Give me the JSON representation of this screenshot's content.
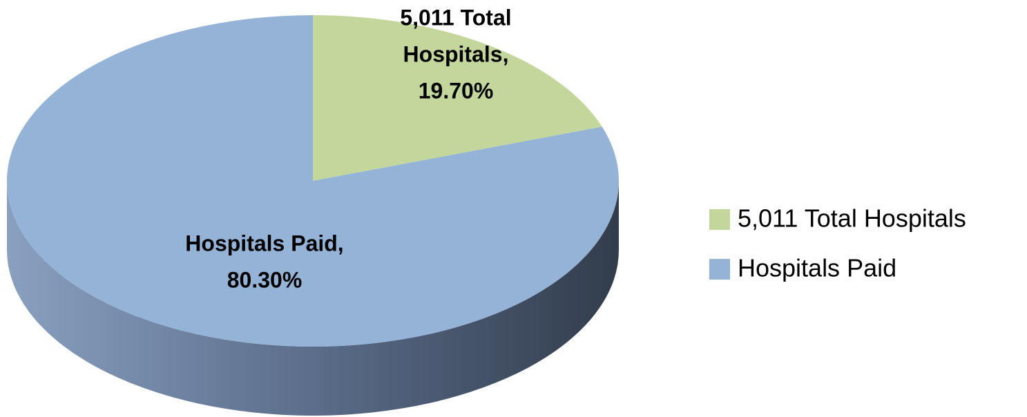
{
  "chart_data": {
    "type": "pie",
    "categories": [
      "5,011 Total Hospitals",
      "Hospitals Paid"
    ],
    "values": [
      19.7,
      80.3
    ],
    "value_labels": [
      [
        "5,011 Total",
        "Hospitals,",
        "19.70%"
      ],
      [
        "Hospitals Paid,",
        "80.30%"
      ]
    ],
    "colors": [
      "#c3d69b",
      "#95b3d7"
    ],
    "legend": "right"
  }
}
